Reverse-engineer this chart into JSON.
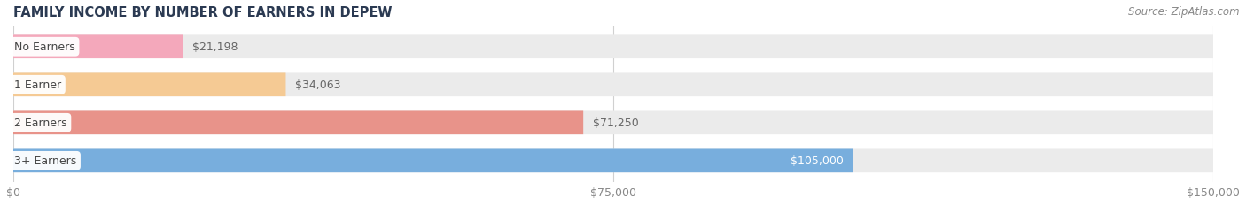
{
  "title": "FAMILY INCOME BY NUMBER OF EARNERS IN DEPEW",
  "source": "Source: ZipAtlas.com",
  "categories": [
    "No Earners",
    "1 Earner",
    "2 Earners",
    "3+ Earners"
  ],
  "values": [
    21198,
    34063,
    71250,
    105000
  ],
  "bar_colors": [
    "#f4a8bb",
    "#f5ca94",
    "#e8938a",
    "#78aedd"
  ],
  "bar_bg_color": "#ebebeb",
  "value_label_colors": [
    "#666666",
    "#666666",
    "#666666",
    "#ffffff"
  ],
  "x_max": 150000,
  "x_ticks": [
    0,
    75000,
    150000
  ],
  "x_tick_labels": [
    "$0",
    "$75,000",
    "$150,000"
  ],
  "title_fontsize": 10.5,
  "source_fontsize": 8.5,
  "label_fontsize": 9,
  "val_fontsize": 9,
  "tick_fontsize": 9,
  "title_color": "#2b3a52",
  "source_color": "#888888",
  "cat_label_color": "#444444",
  "tick_color": "#888888"
}
